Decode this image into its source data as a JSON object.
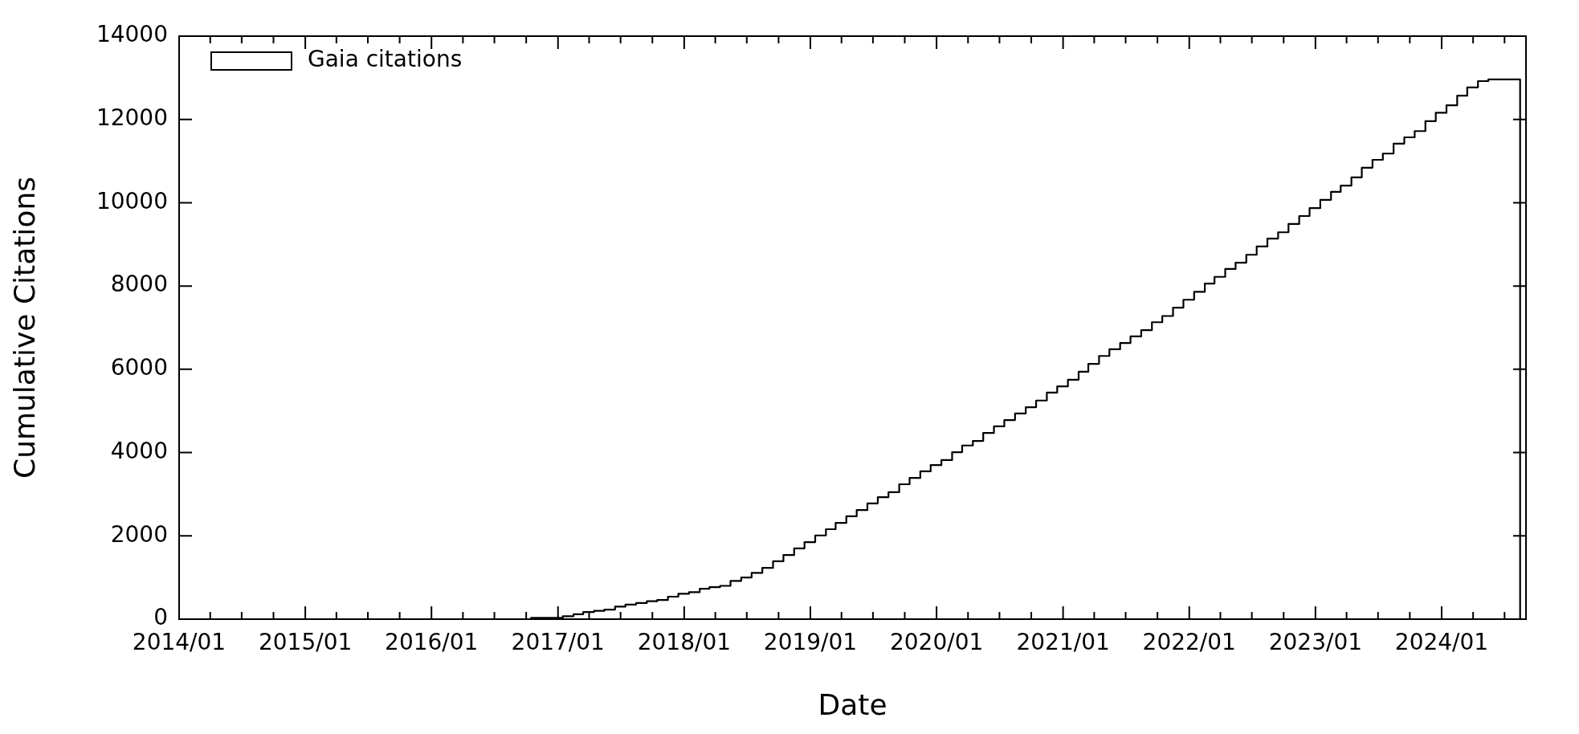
{
  "chart_data": {
    "type": "step",
    "xlabel": "Date",
    "ylabel": "Cumulative Citations",
    "legend": "top left",
    "xlim": [
      "2014-01",
      "2024-09"
    ],
    "ylim": [
      0,
      14000
    ],
    "yticks": [
      0,
      2000,
      4000,
      6000,
      8000,
      10000,
      12000,
      14000
    ],
    "xticks": [
      {
        "value": "2014-01",
        "label": "2014/01"
      },
      {
        "value": "2014-04",
        "label": null
      },
      {
        "value": "2014-07",
        "label": null
      },
      {
        "value": "2014-10",
        "label": null
      },
      {
        "value": "2015-01",
        "label": "2015/01"
      },
      {
        "value": "2015-04",
        "label": null
      },
      {
        "value": "2015-07",
        "label": null
      },
      {
        "value": "2015-10",
        "label": null
      },
      {
        "value": "2016-01",
        "label": "2016/01"
      },
      {
        "value": "2016-04",
        "label": null
      },
      {
        "value": "2016-07",
        "label": null
      },
      {
        "value": "2016-10",
        "label": null
      },
      {
        "value": "2017-01",
        "label": "2017/01"
      },
      {
        "value": "2017-04",
        "label": null
      },
      {
        "value": "2017-07",
        "label": null
      },
      {
        "value": "2017-10",
        "label": null
      },
      {
        "value": "2018-01",
        "label": "2018/01"
      },
      {
        "value": "2018-04",
        "label": null
      },
      {
        "value": "2018-07",
        "label": null
      },
      {
        "value": "2018-10",
        "label": null
      },
      {
        "value": "2019-01",
        "label": "2019/01"
      },
      {
        "value": "2019-04",
        "label": null
      },
      {
        "value": "2019-07",
        "label": null
      },
      {
        "value": "2019-10",
        "label": null
      },
      {
        "value": "2020-01",
        "label": "2020/01"
      },
      {
        "value": "2020-04",
        "label": null
      },
      {
        "value": "2020-07",
        "label": null
      },
      {
        "value": "2020-10",
        "label": null
      },
      {
        "value": "2021-01",
        "label": "2021/01"
      },
      {
        "value": "2021-04",
        "label": null
      },
      {
        "value": "2021-07",
        "label": null
      },
      {
        "value": "2021-10",
        "label": null
      },
      {
        "value": "2022-01",
        "label": "2022/01"
      },
      {
        "value": "2022-04",
        "label": null
      },
      {
        "value": "2022-07",
        "label": null
      },
      {
        "value": "2022-10",
        "label": null
      },
      {
        "value": "2023-01",
        "label": "2023/01"
      },
      {
        "value": "2023-04",
        "label": null
      },
      {
        "value": "2023-07",
        "label": null
      },
      {
        "value": "2023-10",
        "label": null
      },
      {
        "value": "2024-01",
        "label": "2024/01"
      },
      {
        "value": "2024-04",
        "label": null
      },
      {
        "value": "2024-07",
        "label": null
      }
    ],
    "series": [
      {
        "name": "Gaia citations",
        "color": "#000000",
        "x": [
          "2016-08-15",
          "2016-10-15",
          "2017-01-15",
          "2017-02-15",
          "2017-03-15",
          "2017-04-15",
          "2017-05-15",
          "2017-06-15",
          "2017-07-15",
          "2017-08-15",
          "2017-09-15",
          "2017-10-15",
          "2017-11-15",
          "2017-12-15",
          "2018-01-15",
          "2018-02-15",
          "2018-03-15",
          "2018-04-15",
          "2018-05-15",
          "2018-06-15",
          "2018-07-15",
          "2018-08-15",
          "2018-09-15",
          "2018-10-15",
          "2018-11-15",
          "2018-12-15",
          "2019-01-15",
          "2019-02-15",
          "2019-03-15",
          "2019-04-15",
          "2019-05-15",
          "2019-06-15",
          "2019-07-15",
          "2019-08-15",
          "2019-09-15",
          "2019-10-15",
          "2019-11-15",
          "2019-12-15",
          "2020-01-15",
          "2020-02-15",
          "2020-03-15",
          "2020-04-15",
          "2020-05-15",
          "2020-06-15",
          "2020-07-15",
          "2020-08-15",
          "2020-09-15",
          "2020-10-15",
          "2020-11-15",
          "2020-12-15",
          "2021-01-15",
          "2021-02-15",
          "2021-03-15",
          "2021-04-15",
          "2021-05-15",
          "2021-06-15",
          "2021-07-15",
          "2021-08-15",
          "2021-09-15",
          "2021-10-15",
          "2021-11-15",
          "2021-12-15",
          "2022-01-15",
          "2022-02-15",
          "2022-03-15",
          "2022-04-15",
          "2022-05-15",
          "2022-06-15",
          "2022-07-15",
          "2022-08-15",
          "2022-09-15",
          "2022-10-15",
          "2022-11-15",
          "2022-12-15",
          "2023-01-15",
          "2023-02-15",
          "2023-03-15",
          "2023-04-15",
          "2023-05-15",
          "2023-06-15",
          "2023-07-15",
          "2023-08-15",
          "2023-09-15",
          "2023-10-15",
          "2023-11-15",
          "2023-12-15",
          "2024-01-15",
          "2024-02-15",
          "2024-03-15",
          "2024-04-15",
          "2024-05-15",
          "2024-08-15"
        ],
        "values": [
          0,
          30,
          70,
          120,
          170,
          200,
          230,
          300,
          350,
          390,
          430,
          460,
          540,
          610,
          650,
          730,
          770,
          800,
          920,
          1000,
          1110,
          1230,
          1390,
          1540,
          1700,
          1850,
          2010,
          2160,
          2310,
          2470,
          2620,
          2780,
          2930,
          3050,
          3240,
          3390,
          3550,
          3700,
          3820,
          4010,
          4170,
          4280,
          4470,
          4630,
          4780,
          4940,
          5090,
          5250,
          5440,
          5590,
          5750,
          5940,
          6130,
          6320,
          6480,
          6630,
          6790,
          6940,
          7130,
          7280,
          7480,
          7670,
          7860,
          8060,
          8220,
          8410,
          8560,
          8750,
          8950,
          9140,
          9290,
          9490,
          9680,
          9870,
          10070,
          10260,
          10410,
          10610,
          10840,
          11030,
          11180,
          11420,
          11570,
          11720,
          11960,
          12160,
          12340,
          12570,
          12770,
          12920,
          12960,
          0
        ]
      }
    ]
  }
}
